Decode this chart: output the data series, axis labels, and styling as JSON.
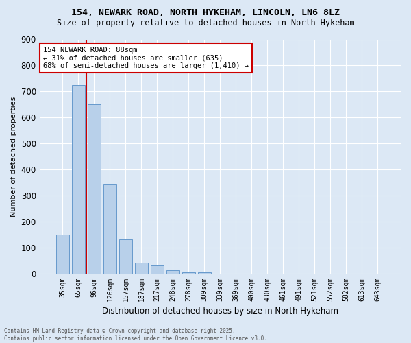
{
  "title_line1": "154, NEWARK ROAD, NORTH HYKEHAM, LINCOLN, LN6 8LZ",
  "title_line2": "Size of property relative to detached houses in North Hykeham",
  "bar_labels": [
    "35sqm",
    "65sqm",
    "96sqm",
    "126sqm",
    "157sqm",
    "187sqm",
    "217sqm",
    "248sqm",
    "278sqm",
    "309sqm",
    "339sqm",
    "369sqm",
    "400sqm",
    "430sqm",
    "461sqm",
    "491sqm",
    "521sqm",
    "552sqm",
    "582sqm",
    "613sqm",
    "643sqm"
  ],
  "bar_values": [
    150,
    725,
    650,
    345,
    132,
    40,
    30,
    12,
    5,
    3,
    0,
    0,
    0,
    0,
    0,
    0,
    0,
    0,
    0,
    0,
    0
  ],
  "bar_color": "#b8d0ea",
  "bar_edge_color": "#6699cc",
  "ylabel": "Number of detached properties",
  "xlabel": "Distribution of detached houses by size in North Hykeham",
  "ylim": [
    0,
    900
  ],
  "yticks": [
    0,
    100,
    200,
    300,
    400,
    500,
    600,
    700,
    800,
    900
  ],
  "vline_color": "#cc0000",
  "vline_index": 1.5,
  "annotation_title": "154 NEWARK ROAD: 88sqm",
  "annotation_line1": "← 31% of detached houses are smaller (635)",
  "annotation_line2": "68% of semi-detached houses are larger (1,410) →",
  "annotation_box_color": "#cc0000",
  "background_color": "#dce8f5",
  "grid_color": "#ffffff",
  "footer_line1": "Contains HM Land Registry data © Crown copyright and database right 2025.",
  "footer_line2": "Contains public sector information licensed under the Open Government Licence v3.0."
}
